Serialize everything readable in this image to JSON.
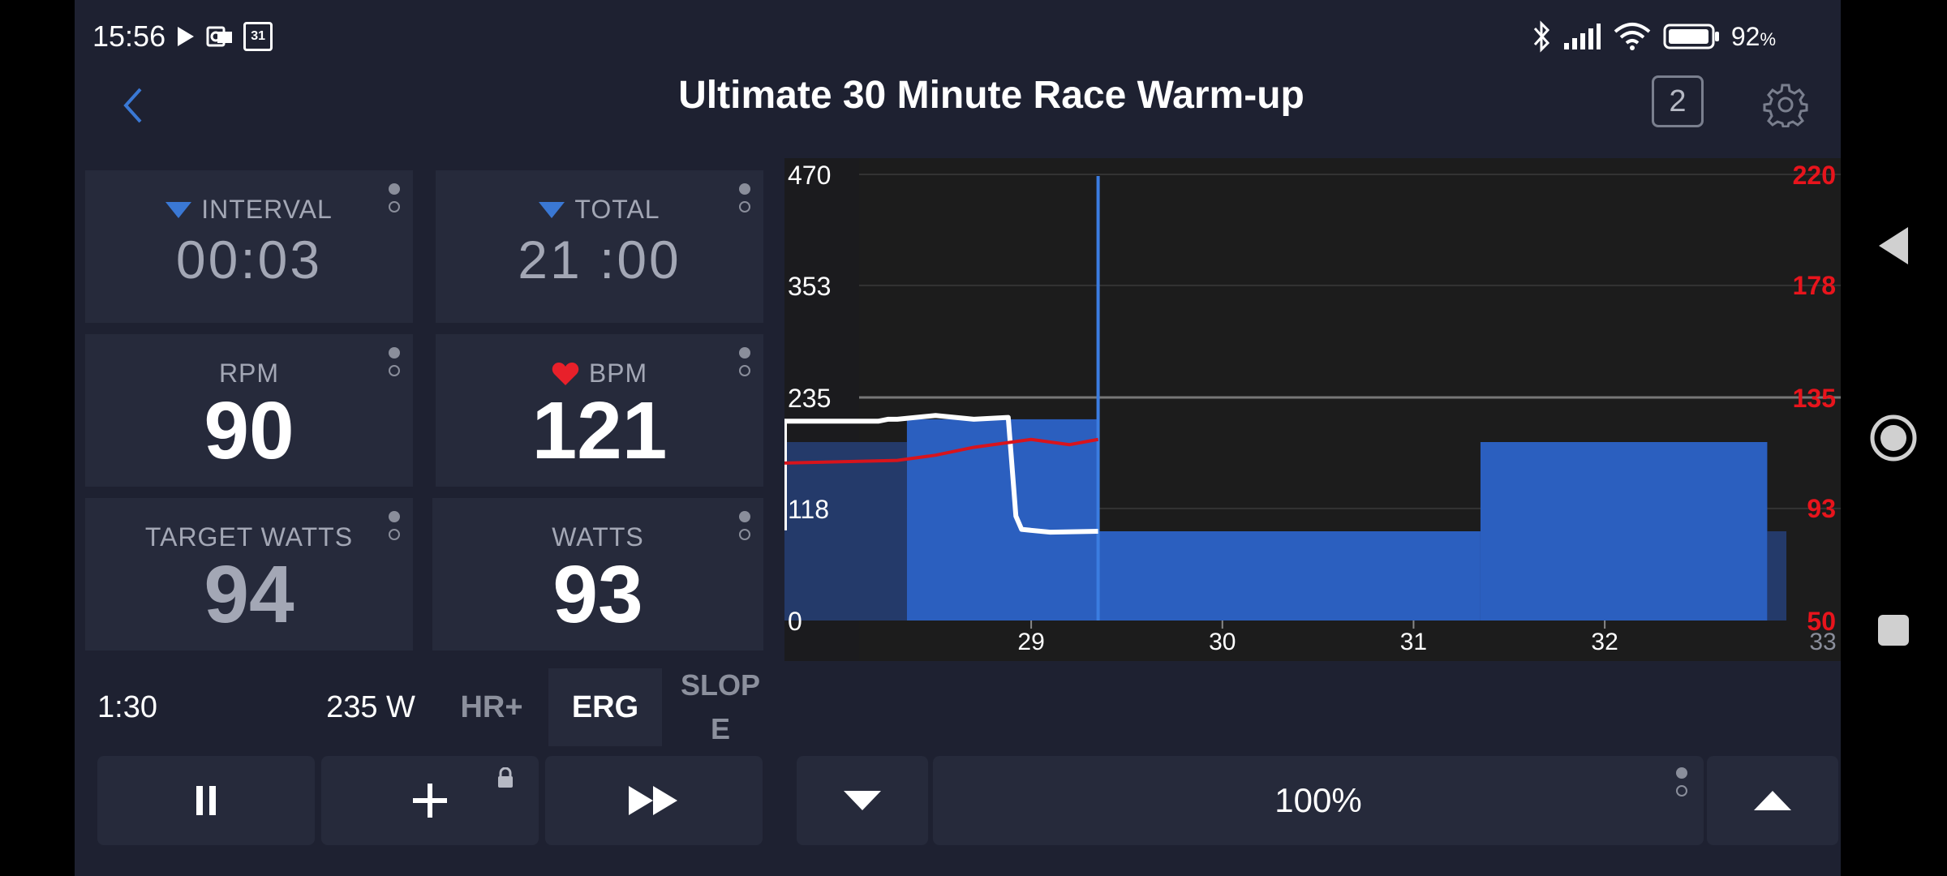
{
  "status_bar": {
    "time": "15:56",
    "calendar_day": "31",
    "battery": "92",
    "battery_unit": "%"
  },
  "header": {
    "title": "Ultimate 30 Minute Race Warm-up",
    "window_count": "2"
  },
  "tiles": {
    "interval": {
      "label": "INTERVAL",
      "value": "00:03"
    },
    "total": {
      "label": "TOTAL",
      "value": "21 :00"
    },
    "rpm": {
      "label": "RPM",
      "value": "90"
    },
    "bpm": {
      "label": "BPM",
      "value": "121"
    },
    "target_watts": {
      "label": "TARGET WATTS",
      "value": "94"
    },
    "watts": {
      "label": "WATTS",
      "value": "93"
    }
  },
  "modes": {
    "interval_time": "1:30",
    "ftp": "235 W",
    "hr_plus": "HR+",
    "erg": "ERG",
    "slope_line1": "SLOP",
    "slope_line2": "E"
  },
  "controls": {
    "intensity": "100%"
  },
  "colors": {
    "accent": "#3a78d4",
    "power_bar": "#2b5fbf",
    "hr_line": "#d8141c",
    "background": "#1e2131",
    "tile": "#262a3b"
  },
  "chart_data": {
    "type": "area",
    "x_ticks": [
      "29",
      "30",
      "31",
      "32",
      "33"
    ],
    "xlim": [
      28.1,
      32.95
    ],
    "left_axis": {
      "ticks": [
        0,
        118,
        235,
        353,
        470
      ],
      "ylim": [
        0,
        470
      ]
    },
    "right_axis": {
      "ticks": [
        50,
        93,
        135,
        178,
        220
      ],
      "ylim": [
        50,
        220
      ]
    },
    "target_watts_segments": [
      {
        "x0": 28.1,
        "x1": 28.35,
        "watts": 188,
        "completed": true
      },
      {
        "x0": 28.35,
        "x1": 29.35,
        "watts": 212,
        "completed": true
      },
      {
        "x0": 29.35,
        "x1": 31.35,
        "watts": 94,
        "completed": false
      },
      {
        "x0": 31.35,
        "x1": 32.85,
        "watts": 188,
        "completed": false
      },
      {
        "x0": 32.85,
        "x1": 32.95,
        "watts": 94,
        "completed": false
      }
    ],
    "current_position": 29.35,
    "series": [
      {
        "axis": "left",
        "points": [
          [
            28.1,
            95
          ],
          [
            28.1,
            210
          ],
          [
            28.2,
            210
          ],
          [
            28.25,
            212
          ],
          [
            28.3,
            212
          ],
          [
            28.5,
            216
          ],
          [
            28.7,
            212
          ],
          [
            28.88,
            214
          ],
          [
            28.92,
            110
          ],
          [
            28.95,
            96
          ],
          [
            29.1,
            93
          ],
          [
            29.35,
            94
          ]
        ]
      },
      {
        "axis": "right",
        "points": [
          [
            28.1,
            110
          ],
          [
            28.3,
            111
          ],
          [
            28.5,
            113
          ],
          [
            28.7,
            116
          ],
          [
            28.9,
            118
          ],
          [
            29.0,
            119
          ],
          [
            29.1,
            118
          ],
          [
            29.2,
            117
          ],
          [
            29.35,
            119
          ]
        ]
      }
    ]
  }
}
